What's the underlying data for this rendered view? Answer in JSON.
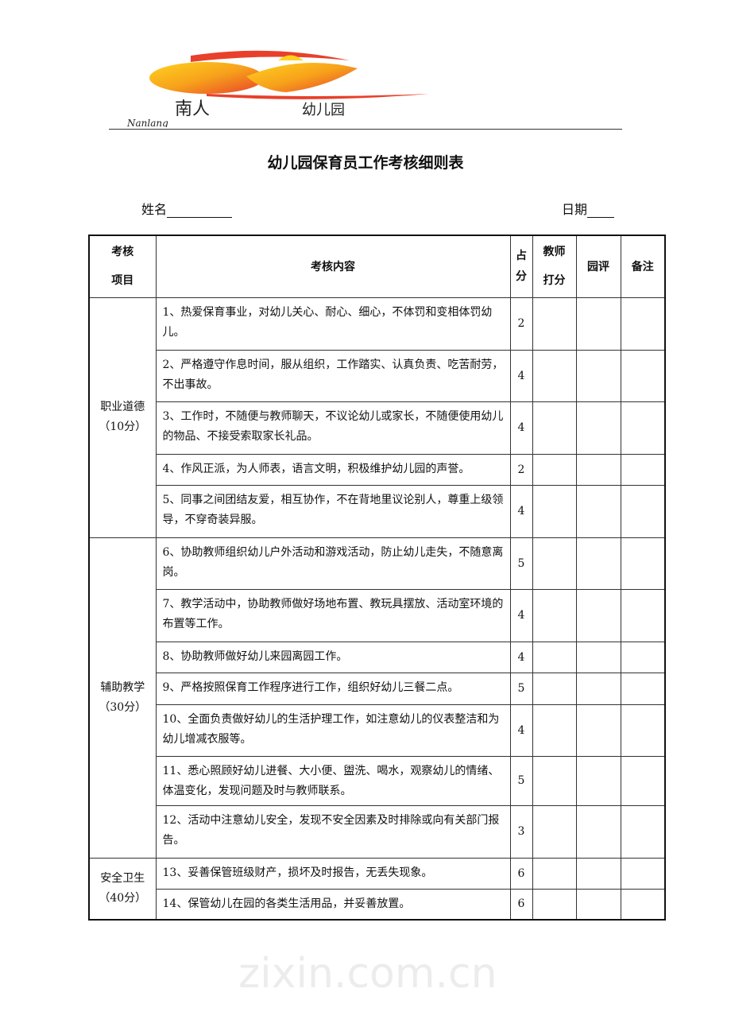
{
  "logo": {
    "text": "南人幼儿园",
    "latin": "Nanlang",
    "colors": [
      "#e8402a",
      "#f7a21b",
      "#ffd21f"
    ]
  },
  "title": "幼儿园保育员工作考核细则表",
  "name_label": "姓名",
  "date_label": "日期",
  "headers": {
    "item": [
      "考核",
      "项目"
    ],
    "content": "考核内容",
    "score": [
      "占",
      "分"
    ],
    "teacher": [
      "教师",
      "打分"
    ],
    "garden": "园评",
    "remark": "备注"
  },
  "categories": [
    {
      "name": "职业道德",
      "points": "（10分）"
    },
    {
      "name": "辅助教学",
      "points": "（30分）"
    },
    {
      "name": "安全卫生",
      "points": "（40分）"
    }
  ],
  "rows": [
    {
      "content": "1、热爱保育事业，对幼儿关心、耐心、细心，不体罚和变相体罚幼儿。",
      "score": "2"
    },
    {
      "content": "2、严格遵守作息时间，服从组织，工作踏实、认真负责、吃苦耐劳，不出事故。",
      "score": "4"
    },
    {
      "content": "3、工作时，不随便与教师聊天，不议论幼儿或家长，不随便使用幼儿的物品、不接受索取家长礼品。",
      "score": "4"
    },
    {
      "content": "4、作风正派，为人师表，语言文明，积极维护幼儿园的声誉。",
      "score": "2"
    },
    {
      "content": "5、同事之间团结友爱，相互协作，不在背地里议论别人，尊重上级领导，不穿奇装异服。",
      "score": "4"
    },
    {
      "content": "6、协助教师组织幼儿户外活动和游戏活动，防止幼儿走失，不随意离岗。",
      "score": "5"
    },
    {
      "content": "7、教学活动中，协助教师做好场地布置、教玩具摆放、活动室环境的布置等工作。",
      "score": "4"
    },
    {
      "content": "8、协助教师做好幼儿来园离园工作。",
      "score": "4"
    },
    {
      "content": "9、严格按照保育工作程序进行工作，组织好幼儿三餐二点。",
      "score": "5"
    },
    {
      "content": "10、全面负责做好幼儿的生活护理工作，如注意幼儿的仪表整洁和为幼儿增减衣服等。",
      "score": "4"
    },
    {
      "content": "11、悉心照顾好幼儿进餐、大小便、盥洗、喝水，观察幼儿的情绪、体温变化，发现问题及时与教师联系。",
      "score": "5"
    },
    {
      "content": "12、活动中注意幼儿安全，发现不安全因素及时排除或向有关部门报告。",
      "score": "3"
    },
    {
      "content": "13、妥善保管班级财产，损坏及时报告，无丢失现象。",
      "score": "6"
    },
    {
      "content": "14、保管幼儿在园的各类生活用品，并妥善放置。",
      "score": "6"
    }
  ],
  "watermark": "zixin.com.cn"
}
